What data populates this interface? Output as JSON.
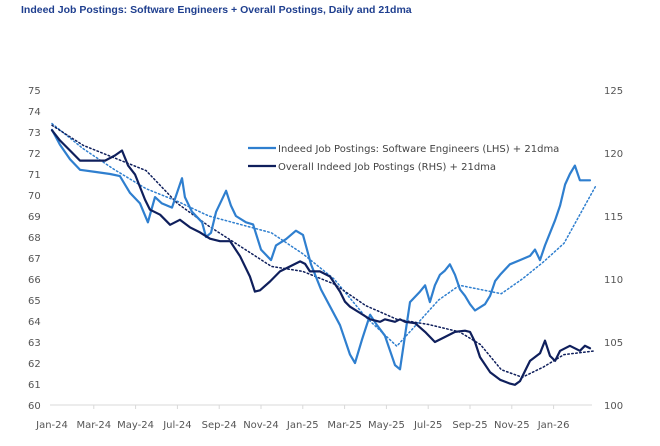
{
  "chart_data": {
    "type": "line",
    "title": "Indeed Job Postings: Software Engineers + Overall Postings, Daily and 21dma",
    "xlabel": "",
    "ylabel_left": "",
    "ylabel_right": "",
    "x_tick_labels": [
      "Jan-24",
      "Mar-24",
      "May-24",
      "Jul-24",
      "Sep-24",
      "Nov-24",
      "Jan-25",
      "Mar-25",
      "May-25",
      "Jul-25",
      "Sep-25",
      "Nov-25",
      "Jan-26"
    ],
    "x_unit": "months since Jan-24",
    "x_range": [
      0,
      26.3
    ],
    "y_left_ticks": [
      "60",
      "61",
      "62",
      "63",
      "64",
      "65",
      "66",
      "67",
      "68",
      "69",
      "70",
      "71",
      "72",
      "73",
      "74",
      "75"
    ],
    "y_left_range": [
      60,
      75
    ],
    "y_right_ticks": [
      "100",
      "105",
      "110",
      "115",
      "120",
      "125"
    ],
    "y_right_range": [
      100,
      125
    ],
    "grid": false,
    "legend_position": "top-right",
    "legend": [
      "Indeed Job Postings: Software Engineers (LHS) + 21dma",
      "Overall Indeed Job Postings (RHS) + 21dma"
    ],
    "colors": {
      "software": "#2f7fcf",
      "overall": "#0f1f5c",
      "title": "#1f3f8f",
      "axis": "#d9d9d9"
    },
    "series": [
      {
        "name": "Indeed Job Postings: Software Engineers (LHS)",
        "axis": "left",
        "x": [
          0,
          0.38,
          0.86,
          1.34,
          2.06,
          2.78,
          3.25,
          3.73,
          4.21,
          4.59,
          4.93,
          5.26,
          5.74,
          6.22,
          6.36,
          6.7,
          7.18,
          7.37,
          7.61,
          7.85,
          8.33,
          8.56,
          8.8,
          9.28,
          9.62,
          10.0,
          10.48,
          10.72,
          11.2,
          11.67,
          12.01,
          12.39,
          12.87,
          13.78,
          14.26,
          14.5,
          14.83,
          15.22,
          15.55,
          15.93,
          16.41,
          16.65,
          16.89,
          17.13,
          17.61,
          17.85,
          18.08,
          18.32,
          18.56,
          18.8,
          19.04,
          19.28,
          19.52,
          19.76,
          20.0,
          20.24,
          20.72,
          20.96,
          21.2,
          21.44,
          21.91,
          22.39,
          22.87,
          23.11,
          23.35,
          23.59,
          24.07,
          24.31,
          24.55,
          24.78,
          25.02,
          25.26,
          25.74
        ],
        "values": [
          73.1,
          72.4,
          71.7,
          71.2,
          71.1,
          71.0,
          70.9,
          70.1,
          69.6,
          68.7,
          69.9,
          69.6,
          69.4,
          70.8,
          69.9,
          69.2,
          68.7,
          68.0,
          68.2,
          69.2,
          70.2,
          69.5,
          69.0,
          68.7,
          68.6,
          67.4,
          66.9,
          67.6,
          67.9,
          68.3,
          68.1,
          66.7,
          65.5,
          63.8,
          62.4,
          62.0,
          63.1,
          64.3,
          63.8,
          63.3,
          61.9,
          61.7,
          63.3,
          64.9,
          65.4,
          65.7,
          64.9,
          65.7,
          66.2,
          66.4,
          66.7,
          66.2,
          65.5,
          65.2,
          64.8,
          64.5,
          64.8,
          65.2,
          65.9,
          66.2,
          66.7,
          66.9,
          67.1,
          67.4,
          66.9,
          67.6,
          68.8,
          69.5,
          70.5,
          71.0,
          71.4,
          70.7,
          70.7
        ]
      },
      {
        "name": "Software Engineers 21dma",
        "axis": "left",
        "x": [
          0,
          1.5,
          3,
          4.5,
          6,
          7.5,
          9,
          10.5,
          12,
          13.5,
          15,
          16.5,
          17.5,
          18.5,
          19.5,
          20.5,
          21.5,
          22.5,
          23.5,
          24.5,
          25.5,
          26
        ],
        "values": [
          73.4,
          72.2,
          71.2,
          70.3,
          69.7,
          69.0,
          68.6,
          68.2,
          67.2,
          66.0,
          64.2,
          62.8,
          63.9,
          65.0,
          65.7,
          65.5,
          65.3,
          66.0,
          66.8,
          67.7,
          69.5,
          70.4
        ]
      },
      {
        "name": "Overall Indeed Job Postings (RHS)",
        "axis": "right",
        "x": [
          0,
          0.38,
          0.86,
          1.34,
          2.06,
          2.54,
          3.01,
          3.35,
          3.64,
          3.97,
          4.45,
          4.69,
          5.17,
          5.65,
          6.12,
          6.6,
          7.08,
          7.56,
          8.04,
          8.52,
          9.0,
          9.47,
          9.71,
          9.95,
          10.43,
          10.91,
          11.39,
          11.87,
          12.11,
          12.34,
          12.82,
          13.3,
          13.78,
          14.02,
          14.26,
          14.74,
          15.22,
          15.7,
          15.93,
          16.41,
          16.65,
          16.89,
          17.37,
          17.85,
          18.32,
          18.8,
          19.28,
          19.76,
          20.0,
          20.24,
          20.48,
          20.96,
          21.44,
          21.91,
          22.15,
          22.39,
          22.87,
          23.35,
          23.59,
          23.83,
          24.07,
          24.31,
          24.78,
          25.26,
          25.5,
          25.74
        ],
        "values": [
          121.8,
          121.0,
          120.2,
          119.4,
          119.4,
          119.4,
          119.8,
          120.2,
          119.0,
          118.3,
          116.3,
          115.5,
          115.1,
          114.3,
          114.7,
          114.1,
          113.7,
          113.2,
          113.0,
          113.0,
          111.8,
          110.2,
          109.0,
          109.1,
          109.8,
          110.6,
          111.0,
          111.4,
          111.2,
          110.6,
          110.6,
          110.2,
          109.0,
          108.2,
          107.8,
          107.3,
          106.8,
          106.6,
          106.8,
          106.6,
          106.8,
          106.6,
          106.5,
          105.8,
          105.0,
          105.4,
          105.8,
          105.9,
          105.8,
          105.0,
          103.8,
          102.6,
          102.0,
          101.7,
          101.6,
          101.9,
          103.5,
          104.1,
          105.1,
          103.9,
          103.5,
          104.3,
          104.7,
          104.3,
          104.7,
          104.5
        ]
      },
      {
        "name": "Overall 21dma",
        "axis": "right",
        "x": [
          0,
          1.5,
          3,
          4.5,
          6,
          7.5,
          9,
          10.5,
          12,
          13.5,
          15,
          16.5,
          18,
          19.5,
          20.5,
          21.5,
          22.5,
          23.5,
          24.5,
          25.5,
          26
        ],
        "values": [
          122.2,
          120.6,
          119.6,
          118.6,
          116.0,
          114.2,
          112.6,
          111.0,
          110.6,
          109.6,
          107.9,
          106.8,
          106.4,
          105.8,
          104.8,
          102.8,
          102.2,
          103.0,
          104.0,
          104.2,
          104.3
        ]
      }
    ]
  }
}
